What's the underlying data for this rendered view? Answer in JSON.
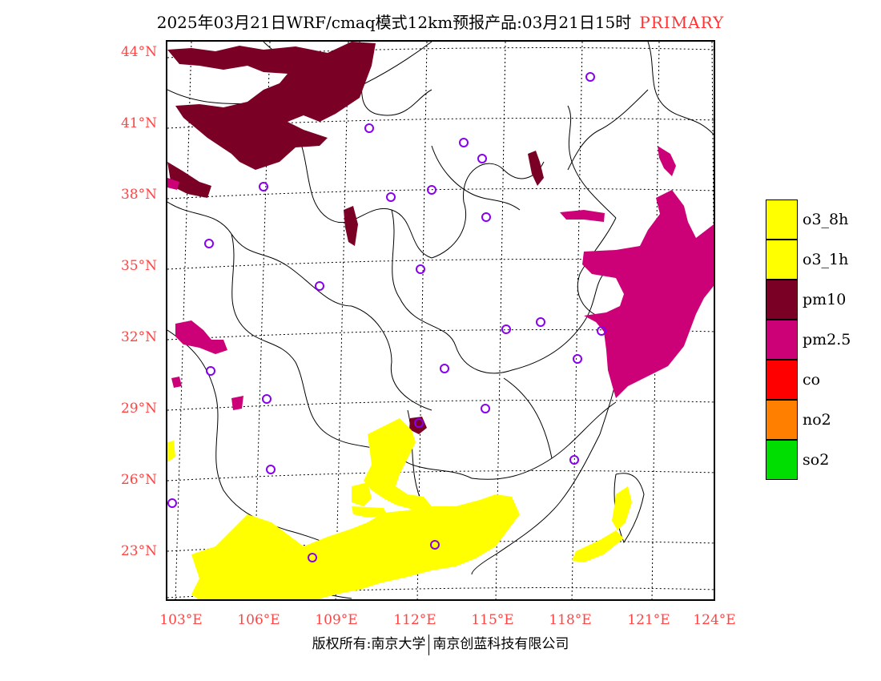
{
  "title": {
    "main": "2025年03月21日WRF/cmaq模式12km预报产品:03月21日15时",
    "tag": "PRIMARY"
  },
  "lat_labels": [
    "44°N",
    "41°N",
    "38°N",
    "35°N",
    "32°N",
    "29°N",
    "26°N",
    "23°N"
  ],
  "lon_labels": [
    "103°E",
    "106°E",
    "109°E",
    "112°E",
    "115°E",
    "118°E",
    "121°E",
    "124°E"
  ],
  "legend": [
    {
      "label": "o3_8h",
      "color": "#ffff00"
    },
    {
      "label": "o3_1h",
      "color": "#ffff00"
    },
    {
      "label": "pm10",
      "color": "#7a0026"
    },
    {
      "label": "pm2.5",
      "color": "#cc0077"
    },
    {
      "label": "co",
      "color": "#ff0000"
    },
    {
      "label": "no2",
      "color": "#ff8000"
    },
    {
      "label": "so2",
      "color": "#00dd00"
    }
  ],
  "footer": {
    "left": "版权所有:南京大学",
    "right": "南京创蓝科技有限公司"
  },
  "colors": {
    "axis_label": "#ff4444",
    "title_tag": "#ff3333",
    "station_ring": "#8800ee"
  }
}
